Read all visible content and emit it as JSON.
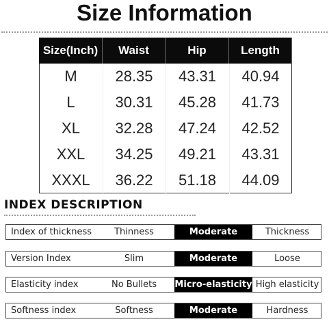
{
  "header": {
    "title": "Size Information"
  },
  "table": {
    "columns": [
      "Size(Inch)",
      "Waist",
      "Hip",
      "Length"
    ],
    "rows": [
      [
        "M",
        "28.35",
        "43.31",
        "40.94"
      ],
      [
        "L",
        "30.31",
        "45.28",
        "41.73"
      ],
      [
        "XL",
        "32.28",
        "47.24",
        "42.52"
      ],
      [
        "XXL",
        "34.25",
        "49.21",
        "43.31"
      ],
      [
        "XXXL",
        "36.22",
        "51.18",
        "44.09"
      ]
    ]
  },
  "index": {
    "title": "INDEX DESCRIPTION",
    "rows": [
      {
        "label": "Index of thickness",
        "options": [
          "Thinness",
          "Moderate",
          "Thickness"
        ],
        "selected": 1
      },
      {
        "label": "Version Index",
        "options": [
          "Slim",
          "Moderate",
          "Loose"
        ],
        "selected": 1
      },
      {
        "label": "Elasticity index",
        "options": [
          "No Bullets",
          "Micro-elasticity",
          "High elasticity"
        ],
        "selected": 1
      },
      {
        "label": "Softness index",
        "options": [
          "Softness",
          "Moderate",
          "Hardness"
        ],
        "selected": 1
      }
    ]
  }
}
